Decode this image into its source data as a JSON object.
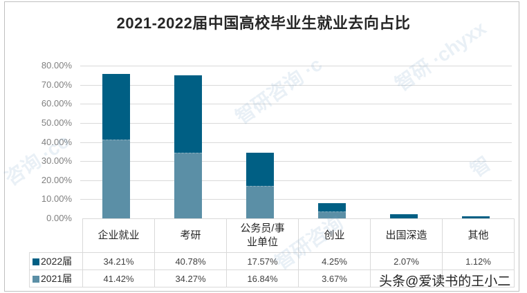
{
  "chart_data": {
    "type": "bar",
    "stacked": true,
    "title": "2021-2022届中国高校毕业生就业去向占比",
    "categories": [
      "企业就业",
      "考研",
      "公务员/事业单位",
      "创业",
      "出国深造",
      "其他"
    ],
    "series": [
      {
        "name": "2021届",
        "color": "#5b8fa6",
        "values": [
          41.42,
          34.27,
          16.84,
          3.67,
          null,
          null
        ],
        "labels": [
          "41.42%",
          "34.27%",
          "16.84%",
          "3.67%",
          "",
          ""
        ]
      },
      {
        "name": "2022届",
        "color": "#005f84",
        "values": [
          34.21,
          40.78,
          17.57,
          4.25,
          2.07,
          1.12
        ],
        "labels": [
          "34.21%",
          "40.78%",
          "17.57%",
          "4.25%",
          "2.07%",
          "1.12%"
        ]
      }
    ],
    "xlabel": "",
    "ylabel": "",
    "ylim": [
      0,
      80
    ],
    "yticks": [
      "0.00%",
      "10.00%",
      "20.00%",
      "30.00%",
      "40.00%",
      "50.00%",
      "60.00%",
      "70.00%",
      "80.00%"
    ],
    "grid": true,
    "legend_position": "data-table-left",
    "data_table": true
  },
  "title": "2021-2022届中国高校毕业生就业去向占比",
  "table": {
    "header_lines": [
      [
        "企业就业"
      ],
      [
        "考研"
      ],
      [
        "公务员/事",
        "业单位"
      ],
      [
        "创业"
      ],
      [
        "出国深造"
      ],
      [
        "其他"
      ]
    ],
    "rows": [
      {
        "legend": "2022届",
        "color": "#005f84",
        "cells": [
          "34.21%",
          "40.78%",
          "17.57%",
          "4.25%",
          "2.07%",
          "1.12%"
        ]
      },
      {
        "legend": "2021届",
        "color": "#5b8fa6",
        "cells": [
          "41.42%",
          "34.27%",
          "16.84%",
          "3.67%",
          "",
          ""
        ]
      }
    ]
  },
  "overlay_text": "头条@爱读书的王小二",
  "watermark": "智研咨询 www.chyxx.com"
}
